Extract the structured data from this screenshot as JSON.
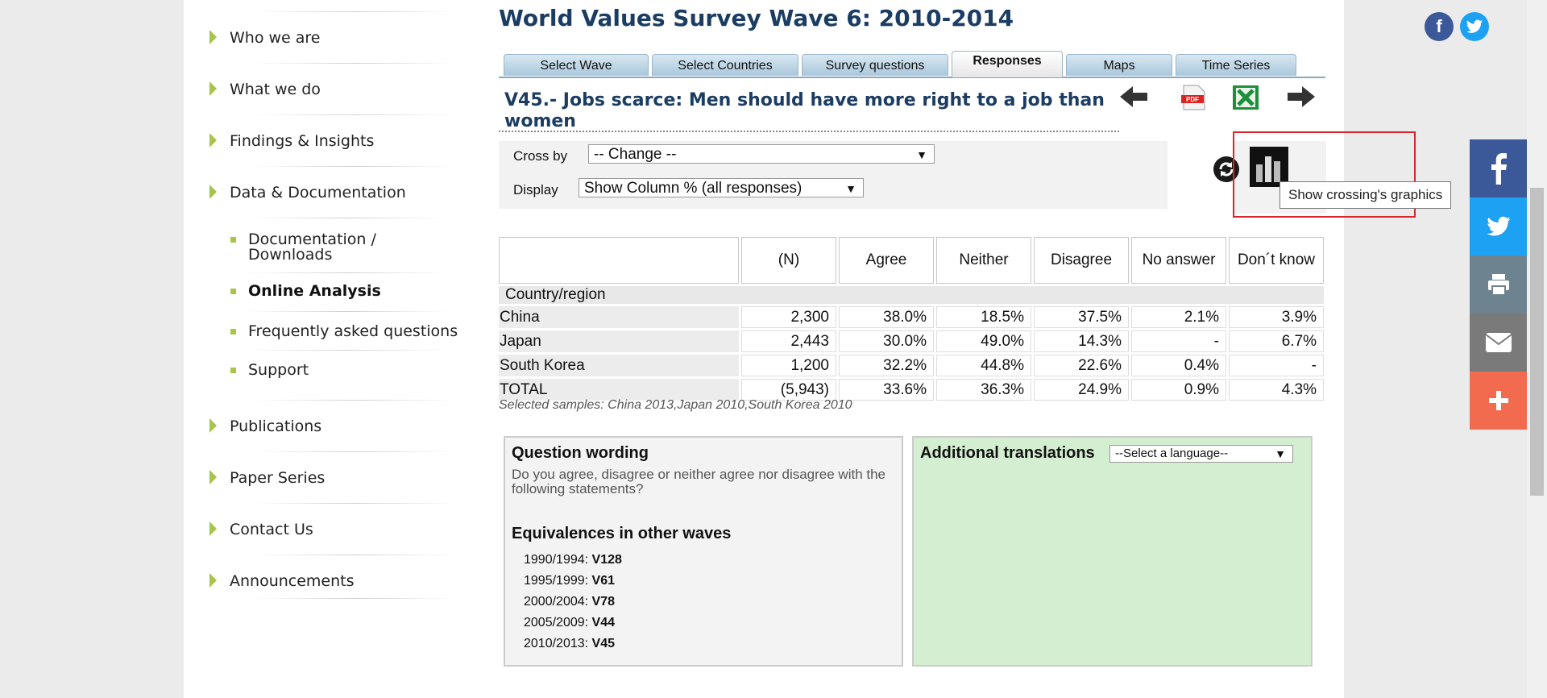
{
  "sidebar": {
    "items": [
      {
        "label": "Who we are"
      },
      {
        "label": "What we do"
      },
      {
        "label": "Findings & Insights"
      },
      {
        "label": "Data & Documentation"
      },
      {
        "label": "Publications"
      },
      {
        "label": "Paper Series"
      },
      {
        "label": "Contact Us"
      },
      {
        "label": "Announcements"
      }
    ],
    "subitems": [
      {
        "label": "Documentation / Downloads",
        "active": false
      },
      {
        "label": "Online Analysis",
        "active": true
      },
      {
        "label": "Frequently asked questions",
        "active": false
      },
      {
        "label": "Support",
        "active": false
      }
    ]
  },
  "page": {
    "title": "World Values Survey Wave 6: 2010-2014",
    "question_title": "V45.- Jobs scarce: Men should have more right to a job than women"
  },
  "tabs": [
    {
      "label": "Select Wave"
    },
    {
      "label": "Select Countries"
    },
    {
      "label": "Survey questions"
    },
    {
      "label": "Responses",
      "active": true
    },
    {
      "label": "Maps"
    },
    {
      "label": "Time Series"
    }
  ],
  "controls": {
    "cross_by_label": "Cross by",
    "cross_by_value": "-- Change --",
    "display_label": "Display",
    "display_value": "Show Column % (all responses)",
    "tooltip": "Show crossing's graphics",
    "pdf_text": "PDF"
  },
  "table": {
    "columns": [
      "(N)",
      "Agree",
      "Neither",
      "Disagree",
      "No answer",
      "Don´t know"
    ],
    "group_label": "Country/region",
    "rows": [
      {
        "name": "China",
        "values": [
          "2,300",
          "38.0%",
          "18.5%",
          "37.5%",
          "2.1%",
          "3.9%"
        ]
      },
      {
        "name": "Japan",
        "values": [
          "2,443",
          "30.0%",
          "49.0%",
          "14.3%",
          "-",
          "6.7%"
        ]
      },
      {
        "name": "South Korea",
        "values": [
          "1,200",
          "32.2%",
          "44.8%",
          "22.6%",
          "0.4%",
          "-"
        ]
      }
    ],
    "total": {
      "name": "TOTAL",
      "values": [
        "(5,943)",
        "33.6%",
        "36.3%",
        "24.9%",
        "0.9%",
        "4.3%"
      ]
    },
    "samples": "Selected samples: China 2013,Japan 2010,South Korea 2010"
  },
  "question_wording": {
    "heading": "Question wording",
    "text": "Do you agree, disagree or neither agree nor disagree with the following statements?",
    "equiv_heading": "Equivalences in other waves",
    "equivalences": [
      {
        "period": "1990/1994:",
        "code": "V128"
      },
      {
        "period": "1995/1999:",
        "code": "V61"
      },
      {
        "period": "2000/2004:",
        "code": "V78"
      },
      {
        "period": "2005/2009:",
        "code": "V44"
      },
      {
        "period": "2010/2013:",
        "code": "V45"
      }
    ]
  },
  "translations": {
    "heading": "Additional translations",
    "select_value": "--Select a language--"
  },
  "colors": {
    "title": "#1c3d63",
    "accent_green": "#a6c54a",
    "facebook": "#3b5998",
    "twitter": "#1da1f2",
    "print": "#6d8490",
    "email": "#7a7a7a",
    "more": "#f26b4f",
    "highlight": "#d9262c"
  }
}
